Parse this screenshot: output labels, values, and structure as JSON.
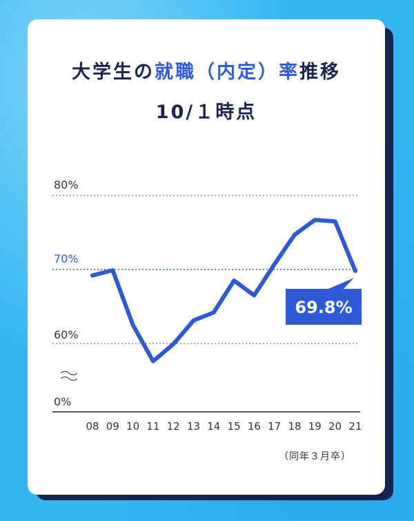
{
  "title": {
    "prefix": "大学生の",
    "highlight": "就職（内定）率",
    "suffix": "推移",
    "line2": "10/１時点"
  },
  "note": "（同年３月卒）",
  "colors": {
    "line": "#2e5ad8",
    "label_bg": "#2e5ad8",
    "background": "#34b7f1",
    "card_shadow": "#16254f"
  },
  "chart_data": {
    "type": "line",
    "categories": [
      "08",
      "09",
      "10",
      "11",
      "12",
      "13",
      "14",
      "15",
      "16",
      "17",
      "18",
      "19",
      "20",
      "21"
    ],
    "series": [
      {
        "values": [
          69.2,
          69.9,
          62.5,
          57.6,
          59.9,
          63.1,
          64.2,
          68.5,
          66.5,
          70.7,
          74.7,
          76.7,
          76.5,
          69.8
        ]
      }
    ],
    "yticks": [
      "80%",
      "70%",
      "60%",
      "0%"
    ],
    "ylim": [
      55,
      80
    ],
    "axis_break": true,
    "annotation": "69.8%",
    "annotation_index": 13,
    "gridlines": [
      80,
      70,
      60
    ]
  }
}
